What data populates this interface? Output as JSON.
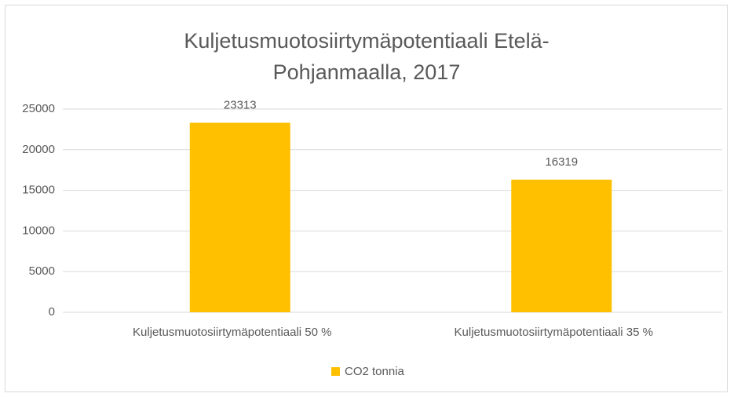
{
  "chart_data": {
    "type": "bar",
    "title": "Kuljetusmuotosiirtymäpotentiaali Etelä-Pohjanmaalla, 2017",
    "categories": [
      "Kuljetusmuotosiirtymäpotentiaali 50 %",
      "Kuljetusmuotosiirtymäpotentiaali 35 %"
    ],
    "series": [
      {
        "name": "CO2 tonnia",
        "color": "#ffc000",
        "values": [
          23313,
          16319
        ]
      }
    ],
    "ylim": [
      0,
      25000
    ],
    "yticks": [
      0,
      5000,
      10000,
      15000,
      20000,
      25000
    ],
    "grid": true,
    "legend": "bottom"
  }
}
